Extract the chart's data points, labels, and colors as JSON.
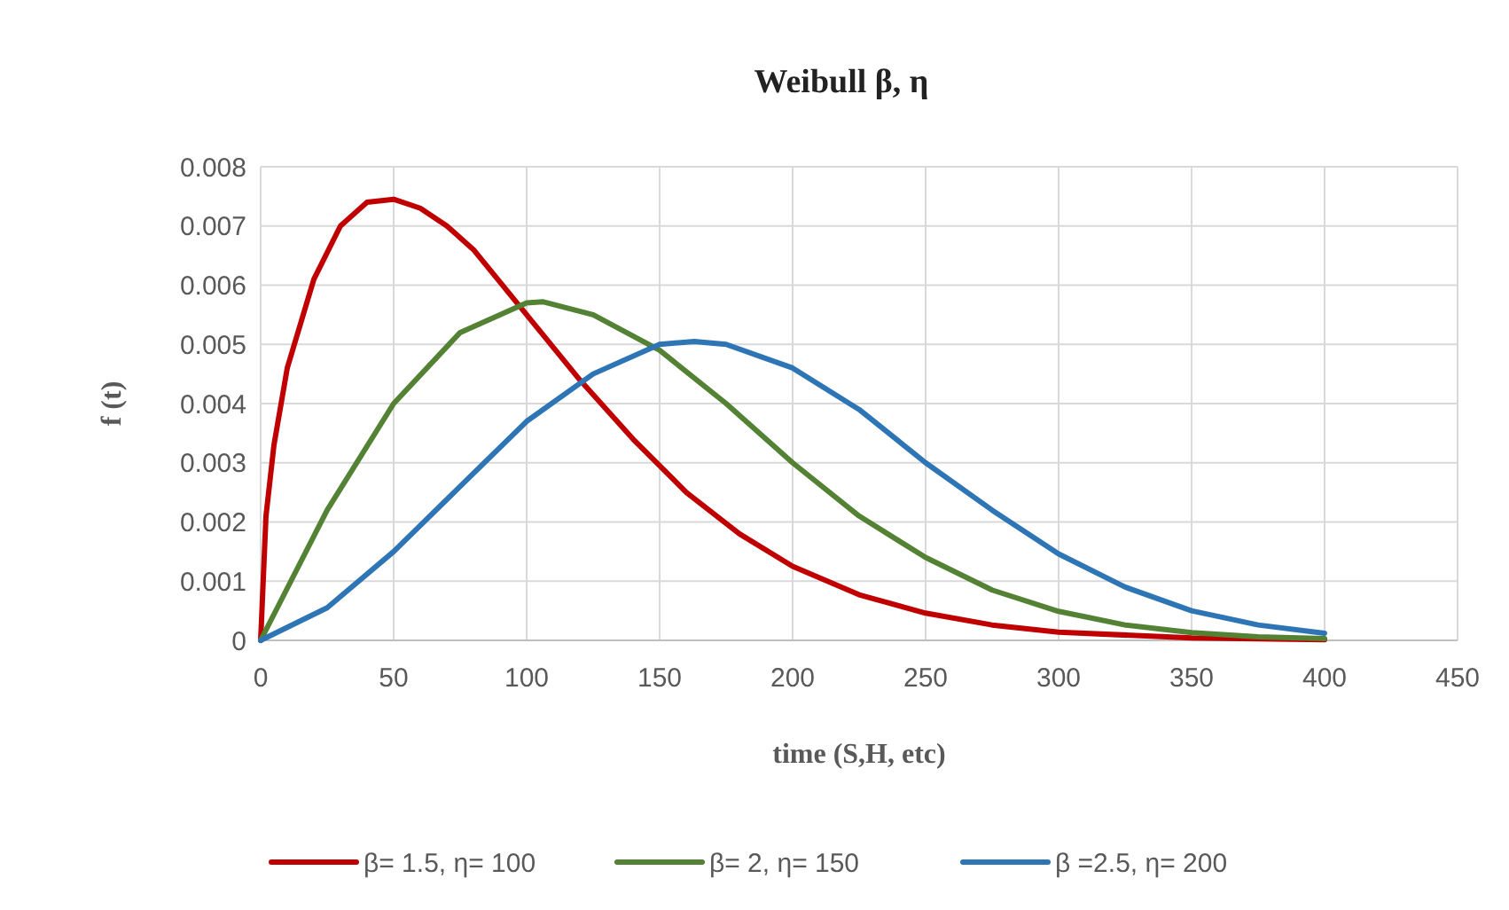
{
  "chart_data": {
    "type": "line",
    "title": "Weibull  β, η",
    "xlabel": "time (S,H, etc)",
    "ylabel": "f (t)",
    "xlim": [
      0,
      450
    ],
    "xticks": [
      0,
      50,
      100,
      150,
      200,
      250,
      300,
      350,
      400,
      450
    ],
    "ylim": [
      0,
      0.008
    ],
    "yticks": [
      0,
      0.001,
      0.002,
      0.003,
      0.004,
      0.005,
      0.006,
      0.007,
      0.008
    ],
    "grid": true,
    "legend": "bottom",
    "marker": "none",
    "line_style": "solid",
    "series": [
      {
        "name": "β= 1.5, η= 100",
        "color": "#c00000",
        "x": [
          0,
          2,
          5,
          10,
          20,
          30,
          40,
          50,
          60,
          70,
          80,
          100,
          120,
          140,
          160,
          180,
          200,
          225,
          250,
          275,
          300,
          350,
          400
        ],
        "values": [
          0,
          0.0021,
          0.0033,
          0.0046,
          0.0061,
          0.007,
          0.0074,
          0.00745,
          0.0073,
          0.007,
          0.0066,
          0.0055,
          0.0044,
          0.0034,
          0.0025,
          0.0018,
          0.00125,
          0.00077,
          0.00046,
          0.00026,
          0.00014,
          4e-05,
          1e-05
        ]
      },
      {
        "name": "β= 2, η= 150",
        "color": "#548235",
        "x": [
          0,
          25,
          50,
          75,
          100,
          106,
          125,
          150,
          175,
          200,
          225,
          250,
          275,
          300,
          325,
          350,
          375,
          400
        ],
        "values": [
          0,
          0.0022,
          0.004,
          0.0052,
          0.0057,
          0.00572,
          0.0055,
          0.0049,
          0.004,
          0.003,
          0.0021,
          0.0014,
          0.00085,
          0.00049,
          0.00026,
          0.00013,
          6e-05,
          3e-05
        ]
      },
      {
        "name": "β =2.5, η= 200",
        "color": "#2e75b6",
        "x": [
          0,
          25,
          50,
          75,
          100,
          125,
          150,
          163,
          175,
          200,
          225,
          250,
          275,
          300,
          325,
          350,
          375,
          400
        ],
        "values": [
          0,
          0.00055,
          0.0015,
          0.0026,
          0.0037,
          0.0045,
          0.005,
          0.00505,
          0.005,
          0.0046,
          0.0039,
          0.003,
          0.0022,
          0.00146,
          0.0009,
          0.0005,
          0.00026,
          0.00012
        ]
      }
    ]
  }
}
